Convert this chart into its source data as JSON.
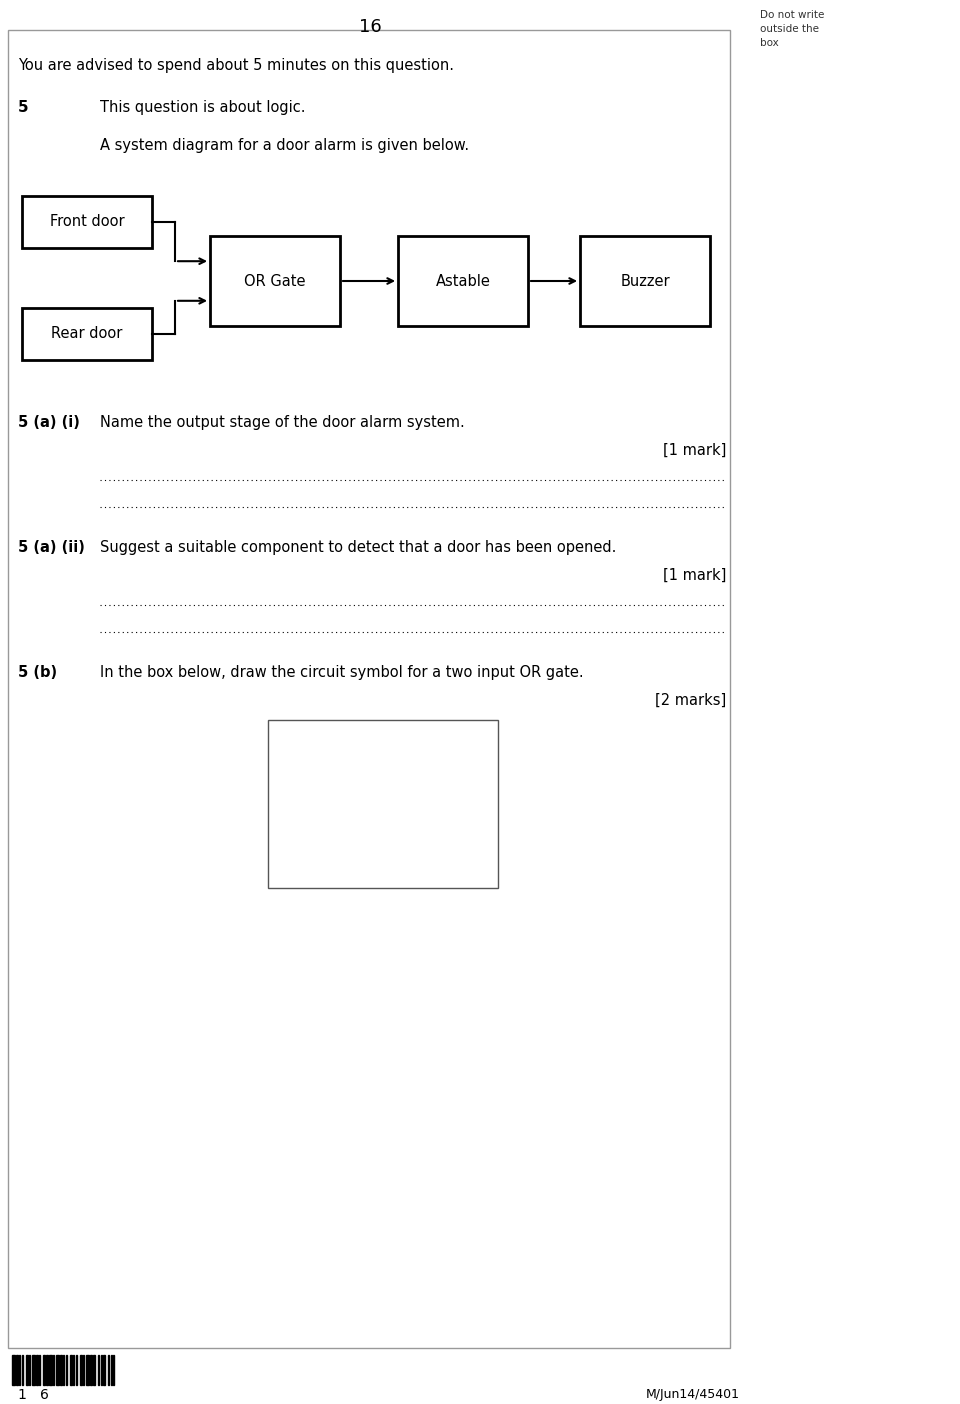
{
  "page_number": "16",
  "do_not_write": "Do not write\noutside the\nbox",
  "advise_text": "You are advised to spend about 5 minutes on this question.",
  "q5_num": "5",
  "q5_intro": "This question is about logic.",
  "q5_sub": "A system diagram for a door alarm is given below.",
  "block_front_door": "Front door",
  "block_or_gate": "OR Gate",
  "block_astable": "Astable",
  "block_buzzer": "Buzzer",
  "block_rear_door": "Rear door",
  "q5ai_label": "5 (a) (i)",
  "q5ai_text": "Name the output stage of the door alarm system.",
  "q5ai_mark": "[1 mark]",
  "q5aii_label": "5 (a) (ii)",
  "q5aii_text": "Suggest a suitable component to detect that a door has been opened.",
  "q5aii_mark": "[1 mark]",
  "q5b_label": "5 (b)",
  "q5b_text": "In the box below, draw the circuit symbol for a two input OR gate.",
  "q5b_mark": "[2 marks]",
  "footer_left": "1   6",
  "footer_right": "M/Jun14/45401",
  "bg_color": "#ffffff",
  "content_border": "#888888",
  "text_color": "#000000"
}
